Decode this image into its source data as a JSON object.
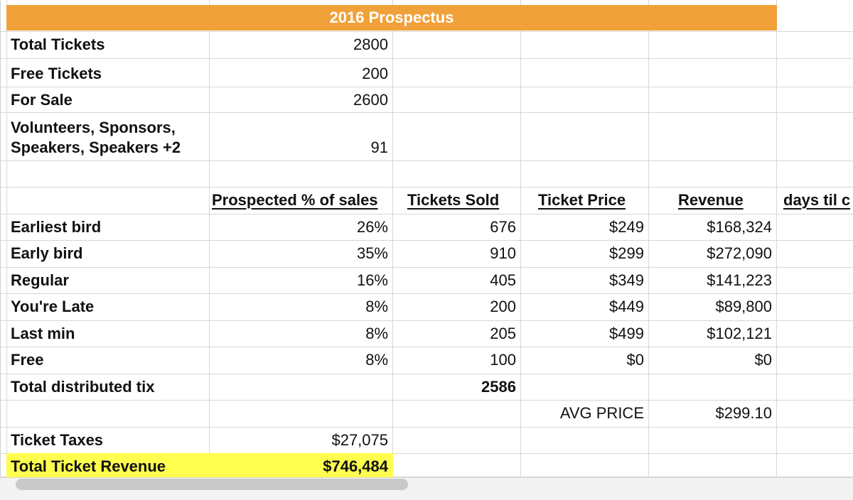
{
  "title": "2016 Prospectus",
  "summary": [
    {
      "label": "Total Tickets",
      "value": "2800"
    },
    {
      "label": "Free Tickets",
      "value": "200"
    },
    {
      "label": "For Sale",
      "value": "2600"
    },
    {
      "label_line1": "Volunteers, Sponsors,",
      "label_line2": "Speakers, Speakers +2",
      "value": "91"
    }
  ],
  "headers": {
    "pct": "Prospected % of sales",
    "sold": "Tickets Sold",
    "price": "Ticket Price",
    "revenue": "Revenue",
    "days": "days til c"
  },
  "tiers": [
    {
      "name": "Earliest bird",
      "pct": "26%",
      "sold": "676",
      "price": "$249",
      "revenue": "$168,324"
    },
    {
      "name": "Early bird",
      "pct": "35%",
      "sold": "910",
      "price": "$299",
      "revenue": "$272,090"
    },
    {
      "name": "Regular",
      "pct": "16%",
      "sold": "405",
      "price": "$349",
      "revenue": "$141,223"
    },
    {
      "name": "You're Late",
      "pct": "8%",
      "sold": "200",
      "price": "$449",
      "revenue": "$89,800"
    },
    {
      "name": "Last min",
      "pct": "8%",
      "sold": "205",
      "price": "$499",
      "revenue": "$102,121"
    },
    {
      "name": "Free",
      "pct": "8%",
      "sold": "100",
      "price": "$0",
      "revenue": "$0"
    }
  ],
  "totals": {
    "distributed_label": "Total distributed tix",
    "distributed_value": "2586",
    "avg_price_label": "AVG PRICE",
    "avg_price_value": "$299.10",
    "taxes_label": "Ticket Taxes",
    "taxes_value": "$27,075",
    "revenue_label": "Total Ticket Revenue",
    "revenue_value": "$746,484"
  },
  "colors": {
    "title_bg": "#f1a13a",
    "highlight": "#ffff4f"
  }
}
